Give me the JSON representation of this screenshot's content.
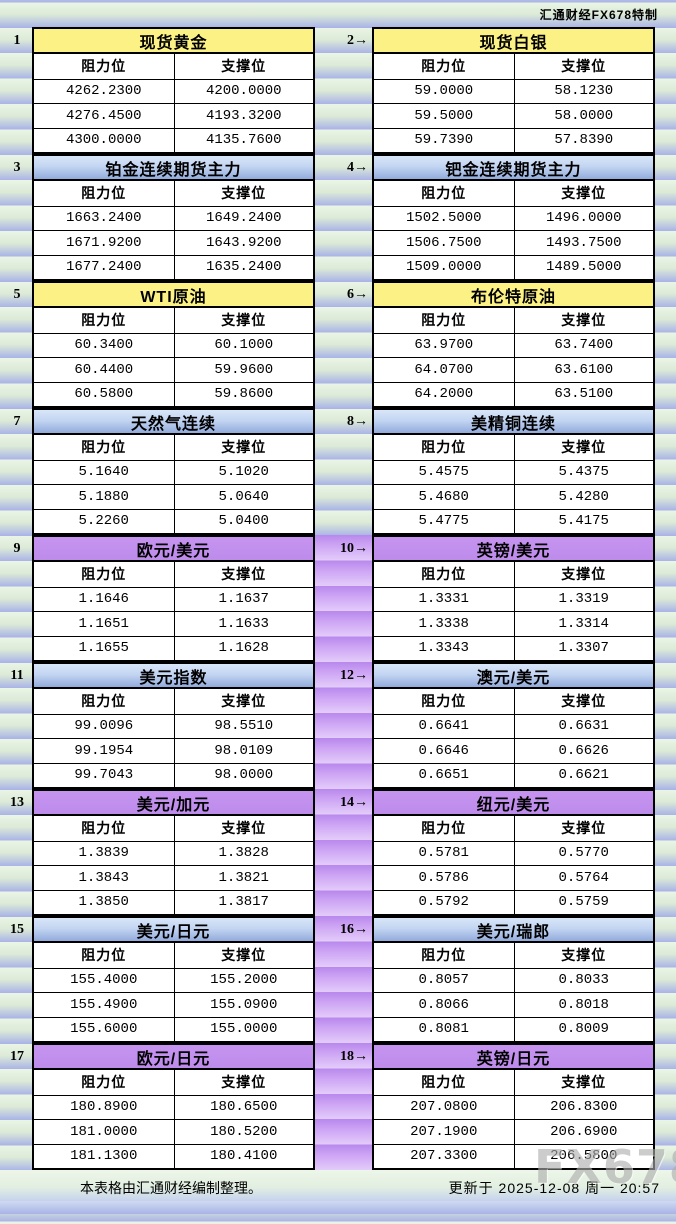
{
  "header": {
    "credit": "汇通财经FX678特制"
  },
  "col_headers": {
    "resistance": "阻力位",
    "support": "支撑位"
  },
  "panels": [
    {
      "num": "1",
      "title": "现货黄金",
      "theme": "yellow",
      "rows": [
        [
          "4262.2300",
          "4200.0000"
        ],
        [
          "4276.4500",
          "4193.3200"
        ],
        [
          "4300.0000",
          "4135.7600"
        ]
      ]
    },
    {
      "num": "2→",
      "title": "现货白银",
      "theme": "yellow",
      "rows": [
        [
          "59.0000",
          "58.1230"
        ],
        [
          "59.5000",
          "58.0000"
        ],
        [
          "59.7390",
          "57.8390"
        ]
      ]
    },
    {
      "num": "3",
      "title": "铂金连续期货主力",
      "theme": "blue",
      "rows": [
        [
          "1663.2400",
          "1649.2400"
        ],
        [
          "1671.9200",
          "1643.9200"
        ],
        [
          "1677.2400",
          "1635.2400"
        ]
      ]
    },
    {
      "num": "4→",
      "title": "钯金连续期货主力",
      "theme": "blue",
      "rows": [
        [
          "1502.5000",
          "1496.0000"
        ],
        [
          "1506.7500",
          "1493.7500"
        ],
        [
          "1509.0000",
          "1489.5000"
        ]
      ]
    },
    {
      "num": "5",
      "title": "WTI原油",
      "theme": "yellow",
      "rows": [
        [
          "60.3400",
          "60.1000"
        ],
        [
          "60.4400",
          "59.9600"
        ],
        [
          "60.5800",
          "59.8600"
        ]
      ]
    },
    {
      "num": "6→",
      "title": "布伦特原油",
      "theme": "yellow",
      "rows": [
        [
          "63.9700",
          "63.7400"
        ],
        [
          "64.0700",
          "63.6100"
        ],
        [
          "64.2000",
          "63.5100"
        ]
      ]
    },
    {
      "num": "7",
      "title": "天然气连续",
      "theme": "blue",
      "rows": [
        [
          "5.1640",
          "5.1020"
        ],
        [
          "5.1880",
          "5.0640"
        ],
        [
          "5.2260",
          "5.0400"
        ]
      ]
    },
    {
      "num": "8→",
      "title": "美精铜连续",
      "theme": "blue",
      "rows": [
        [
          "5.4575",
          "5.4375"
        ],
        [
          "5.4680",
          "5.4280"
        ],
        [
          "5.4775",
          "5.4175"
        ]
      ]
    },
    {
      "num": "9",
      "title": "欧元/美元",
      "theme": "purple",
      "rows": [
        [
          "1.1646",
          "1.1637"
        ],
        [
          "1.1651",
          "1.1633"
        ],
        [
          "1.1655",
          "1.1628"
        ]
      ]
    },
    {
      "num": "10→",
      "title": "英镑/美元",
      "theme": "purple",
      "rows": [
        [
          "1.3331",
          "1.3319"
        ],
        [
          "1.3338",
          "1.3314"
        ],
        [
          "1.3343",
          "1.3307"
        ]
      ]
    },
    {
      "num": "11",
      "title": "美元指数",
      "theme": "blue",
      "rows": [
        [
          "99.0096",
          "98.5510"
        ],
        [
          "99.1954",
          "98.0109"
        ],
        [
          "99.7043",
          "98.0000"
        ]
      ]
    },
    {
      "num": "12→",
      "title": "澳元/美元",
      "theme": "blue",
      "rows": [
        [
          "0.6641",
          "0.6631"
        ],
        [
          "0.6646",
          "0.6626"
        ],
        [
          "0.6651",
          "0.6621"
        ]
      ]
    },
    {
      "num": "13",
      "title": "美元/加元",
      "theme": "purple",
      "rows": [
        [
          "1.3839",
          "1.3828"
        ],
        [
          "1.3843",
          "1.3821"
        ],
        [
          "1.3850",
          "1.3817"
        ]
      ]
    },
    {
      "num": "14→",
      "title": "纽元/美元",
      "theme": "purple",
      "rows": [
        [
          "0.5781",
          "0.5770"
        ],
        [
          "0.5786",
          "0.5764"
        ],
        [
          "0.5792",
          "0.5759"
        ]
      ]
    },
    {
      "num": "15",
      "title": "美元/日元",
      "theme": "blue",
      "rows": [
        [
          "155.4000",
          "155.2000"
        ],
        [
          "155.4900",
          "155.0900"
        ],
        [
          "155.6000",
          "155.0000"
        ]
      ]
    },
    {
      "num": "16→",
      "title": "美元/瑞郎",
      "theme": "blue",
      "rows": [
        [
          "0.8057",
          "0.8033"
        ],
        [
          "0.8066",
          "0.8018"
        ],
        [
          "0.8081",
          "0.8009"
        ]
      ]
    },
    {
      "num": "17",
      "title": "欧元/日元",
      "theme": "purple",
      "rows": [
        [
          "180.8900",
          "180.6500"
        ],
        [
          "181.0000",
          "180.5200"
        ],
        [
          "181.1300",
          "180.4100"
        ]
      ]
    },
    {
      "num": "18→",
      "title": "英镑/日元",
      "theme": "purple",
      "rows": [
        [
          "207.0800",
          "206.8300"
        ],
        [
          "207.1900",
          "206.6900"
        ],
        [
          "207.3300",
          "206.5800"
        ]
      ]
    }
  ],
  "footer": {
    "left": "本表格由汇通财经编制整理。",
    "right": "更新于 2025-12-08 周一 20:57"
  },
  "watermark": "FX678",
  "colors": {
    "yellow_header": "#FBF185",
    "blue_header_top": "#D8E6F8",
    "blue_header_bottom": "#92ABDC",
    "purple_header": "#BE8EEC",
    "stripe_green": "#EAF5E6",
    "stripe_blue": "#A9B3E7",
    "stripe_purple_light": "#E3CCFA",
    "stripe_purple_dark": "#B888EC",
    "watermark_gray": "#ADADAD"
  }
}
